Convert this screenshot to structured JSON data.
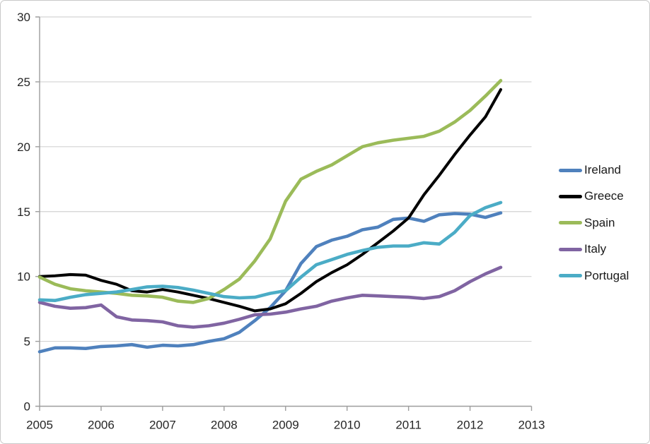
{
  "chart_data": {
    "type": "line",
    "title": "",
    "xlabel": "",
    "ylabel": "",
    "xlim": [
      2005,
      2013
    ],
    "ylim": [
      0,
      30
    ],
    "grid": true,
    "legend_position": "right",
    "x_ticks": [
      "2005",
      "2006",
      "2007",
      "2008",
      "2009",
      "2010",
      "2011",
      "2012",
      "2013"
    ],
    "y_ticks": [
      "0",
      "5",
      "10",
      "15",
      "20",
      "25",
      "30"
    ],
    "axis_color": "#9d9d9d",
    "grid_color": "#d3d3d3",
    "text_color": "#262626",
    "x": [
      2005.0,
      2005.25,
      2005.5,
      2005.75,
      2006.0,
      2006.25,
      2006.5,
      2006.75,
      2007.0,
      2007.25,
      2007.5,
      2007.75,
      2008.0,
      2008.25,
      2008.5,
      2008.75,
      2009.0,
      2009.25,
      2009.5,
      2009.75,
      2010.0,
      2010.25,
      2010.5,
      2010.75,
      2011.0,
      2011.25,
      2011.5,
      2011.75,
      2012.0,
      2012.25,
      2012.5
    ],
    "series": [
      {
        "name": "Ireland",
        "color": "#4f81bd",
        "values": [
          4.2,
          4.5,
          4.5,
          4.45,
          4.6,
          4.65,
          4.75,
          4.55,
          4.7,
          4.65,
          4.75,
          5.0,
          5.2,
          5.7,
          6.6,
          7.6,
          8.9,
          11.0,
          12.3,
          12.8,
          13.1,
          13.6,
          13.8,
          14.4,
          14.5,
          14.25,
          14.75,
          14.85,
          14.8,
          14.55,
          14.9
        ]
      },
      {
        "name": "Greece",
        "color": "#000000",
        "values": [
          10.0,
          10.05,
          10.15,
          10.1,
          9.7,
          9.4,
          8.9,
          8.8,
          9.0,
          8.8,
          8.55,
          8.3,
          8.0,
          7.7,
          7.35,
          7.5,
          7.9,
          8.7,
          9.6,
          10.3,
          10.9,
          11.7,
          12.6,
          13.5,
          14.5,
          16.3,
          17.8,
          19.4,
          20.9,
          22.3,
          24.4
        ]
      },
      {
        "name": "Spain",
        "color": "#9bbb59",
        "values": [
          9.95,
          9.4,
          9.05,
          8.9,
          8.8,
          8.7,
          8.55,
          8.5,
          8.4,
          8.1,
          8.0,
          8.3,
          9.0,
          9.8,
          11.2,
          12.9,
          15.8,
          17.5,
          18.1,
          18.6,
          19.3,
          20.0,
          20.3,
          20.5,
          20.65,
          20.8,
          21.2,
          21.9,
          22.8,
          23.9,
          25.1
        ]
      },
      {
        "name": "Italy",
        "color": "#8064a2",
        "values": [
          8.0,
          7.7,
          7.55,
          7.6,
          7.8,
          6.9,
          6.65,
          6.6,
          6.5,
          6.2,
          6.1,
          6.2,
          6.4,
          6.7,
          7.05,
          7.1,
          7.25,
          7.5,
          7.7,
          8.1,
          8.35,
          8.55,
          8.5,
          8.45,
          8.4,
          8.3,
          8.45,
          8.9,
          9.6,
          10.2,
          10.7
        ]
      },
      {
        "name": "Portugal",
        "color": "#4bacc6",
        "values": [
          8.2,
          8.15,
          8.4,
          8.6,
          8.7,
          8.8,
          9.0,
          9.2,
          9.25,
          9.15,
          8.95,
          8.7,
          8.45,
          8.35,
          8.4,
          8.7,
          8.9,
          9.95,
          10.9,
          11.3,
          11.7,
          12.0,
          12.25,
          12.35,
          12.35,
          12.6,
          12.5,
          13.4,
          14.7,
          15.3,
          15.7
        ]
      }
    ]
  }
}
